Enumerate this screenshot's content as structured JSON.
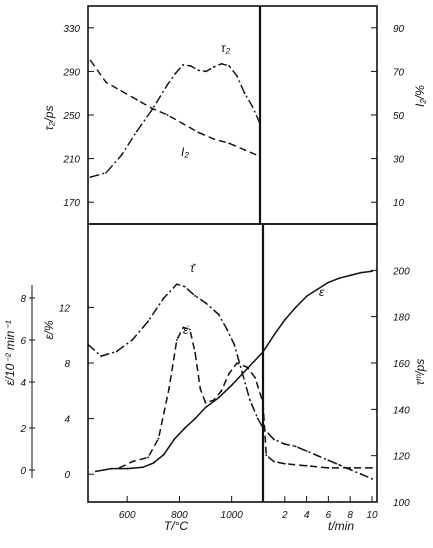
{
  "chart_data": [
    {
      "type": "line",
      "panel": "top",
      "x_axis": {
        "label": "",
        "segments": [
          {
            "scale": "linear",
            "range": [
              450,
              1120
            ],
            "unit": "°C"
          },
          {
            "scale": "linear",
            "range": [
              0,
              10
            ],
            "unit": "min"
          }
        ]
      },
      "y_left": {
        "label": "τ₂/ps",
        "ticks": [
          170,
          210,
          250,
          290,
          330
        ],
        "ylim": [
          150,
          350
        ]
      },
      "y_right": {
        "label": "I₂/%",
        "ticks": [
          10,
          30,
          50,
          70,
          90
        ],
        "ylim": [
          0,
          100
        ]
      },
      "series": [
        {
          "name": "τ₂",
          "axis": "left",
          "style": "dash-dot",
          "points": [
            [
              460,
              193
            ],
            [
              520,
              197
            ],
            [
              580,
              213
            ],
            [
              640,
              235
            ],
            [
              700,
              255
            ],
            [
              760,
              278
            ],
            [
              790,
              288
            ],
            [
              820,
              296
            ],
            [
              850,
              295
            ],
            [
              880,
              291
            ],
            [
              910,
              290
            ],
            [
              940,
              294
            ],
            [
              970,
              297
            ],
            [
              1000,
              295
            ],
            [
              1030,
              286
            ],
            [
              1060,
              270
            ],
            [
              1090,
              258
            ],
            [
              1120,
              242
            ]
          ]
        },
        {
          "name": "I₂",
          "axis": "right",
          "style": "dashed",
          "points": [
            [
              460,
              75
            ],
            [
              520,
              65
            ],
            [
              580,
              61
            ],
            [
              640,
              57
            ],
            [
              700,
              53
            ],
            [
              760,
              50
            ],
            [
              820,
              46
            ],
            [
              880,
              42
            ],
            [
              940,
              39
            ],
            [
              1000,
              37
            ],
            [
              1060,
              34
            ],
            [
              1120,
              31
            ]
          ]
        }
      ]
    },
    {
      "type": "line",
      "panel": "bottom",
      "x_axis": {
        "label": "T/°C",
        "label_right": "t/min",
        "segments": [
          {
            "scale": "linear",
            "range": [
              450,
              1120
            ],
            "ticks": [
              600,
              800,
              1000
            ],
            "unit": "°C"
          },
          {
            "scale": "linear",
            "range": [
              0,
              10
            ],
            "ticks": [
              2,
              4,
              6,
              8,
              10
            ],
            "unit": "min"
          }
        ]
      },
      "y_outer_left": {
        "label": "ε̇/10⁻² min⁻¹",
        "ticks": [
          0,
          2,
          4,
          6,
          8
        ]
      },
      "y_left": {
        "label": "ε/%",
        "ticks": [
          0,
          4,
          8,
          12
        ],
        "ylim": [
          -2,
          18
        ]
      },
      "y_right": {
        "label": "τᵐ/ps",
        "ticks": [
          100,
          120,
          140,
          160,
          180,
          200
        ],
        "ylim": [
          100,
          220
        ]
      },
      "series": [
        {
          "name": "τ̄",
          "axis": "right",
          "style": "dash-dot",
          "points": [
            [
              450,
              168
            ],
            [
              500,
              163
            ],
            [
              560,
              165
            ],
            [
              620,
              170
            ],
            [
              680,
              178
            ],
            [
              740,
              188
            ],
            [
              790,
              194
            ],
            [
              820,
              193
            ],
            [
              860,
              189
            ],
            [
              900,
              186
            ],
            [
              950,
              181
            ],
            [
              980,
              175
            ],
            [
              1010,
              168
            ],
            [
              1040,
              156
            ],
            [
              1070,
              144
            ],
            [
              1100,
              136
            ],
            [
              1120,
              132
            ],
            [
              1120.01,
              132
            ],
            [
              1.0,
              127
            ],
            [
              2.0,
              125
            ],
            [
              3.0,
              124
            ],
            [
              4.0,
              122
            ],
            [
              5.0,
              120
            ],
            [
              6.0,
              118
            ],
            [
              7.0,
              116
            ],
            [
              8.0,
              114
            ],
            [
              9.0,
              112
            ],
            [
              10.0,
              110
            ]
          ]
        },
        {
          "name": "ε̇",
          "axis": "outer-left",
          "style": "dashed",
          "points": [
            [
              570,
              0.1
            ],
            [
              620,
              0.4
            ],
            [
              680,
              0.6
            ],
            [
              720,
              1.5
            ],
            [
              760,
              3.7
            ],
            [
              790,
              6.0
            ],
            [
              815,
              6.6
            ],
            [
              840,
              6.5
            ],
            [
              860,
              5.4
            ],
            [
              880,
              3.7
            ],
            [
              900,
              3.1
            ],
            [
              930,
              3.2
            ],
            [
              960,
              3.6
            ],
            [
              990,
              4.4
            ],
            [
              1020,
              4.9
            ],
            [
              1060,
              4.7
            ],
            [
              1090,
              4.2
            ],
            [
              1120,
              3.1
            ],
            [
              1120.01,
              3.1
            ],
            [
              0.3,
              0.7
            ],
            [
              1.0,
              0.4
            ],
            [
              2.0,
              0.3
            ],
            [
              4.0,
              0.2
            ],
            [
              6.0,
              0.1
            ],
            [
              8.0,
              0.1
            ],
            [
              10.0,
              0.1
            ]
          ]
        },
        {
          "name": "ε",
          "axis": "left",
          "style": "solid",
          "points": [
            [
              480,
              0.2
            ],
            [
              540,
              0.4
            ],
            [
              600,
              0.4
            ],
            [
              660,
              0.5
            ],
            [
              700,
              0.8
            ],
            [
              740,
              1.4
            ],
            [
              780,
              2.5
            ],
            [
              820,
              3.3
            ],
            [
              860,
              4.0
            ],
            [
              900,
              4.8
            ],
            [
              950,
              5.5
            ],
            [
              1000,
              6.4
            ],
            [
              1060,
              7.6
            ],
            [
              1120,
              8.8
            ],
            [
              1120.01,
              8.8
            ],
            [
              1.0,
              10.0
            ],
            [
              2.0,
              11.1
            ],
            [
              3.0,
              12.0
            ],
            [
              4.0,
              12.8
            ],
            [
              5.0,
              13.3
            ],
            [
              6.0,
              13.8
            ],
            [
              7.0,
              14.1
            ],
            [
              8.0,
              14.3
            ],
            [
              9.0,
              14.5
            ],
            [
              10.0,
              14.6
            ]
          ]
        }
      ]
    }
  ]
}
